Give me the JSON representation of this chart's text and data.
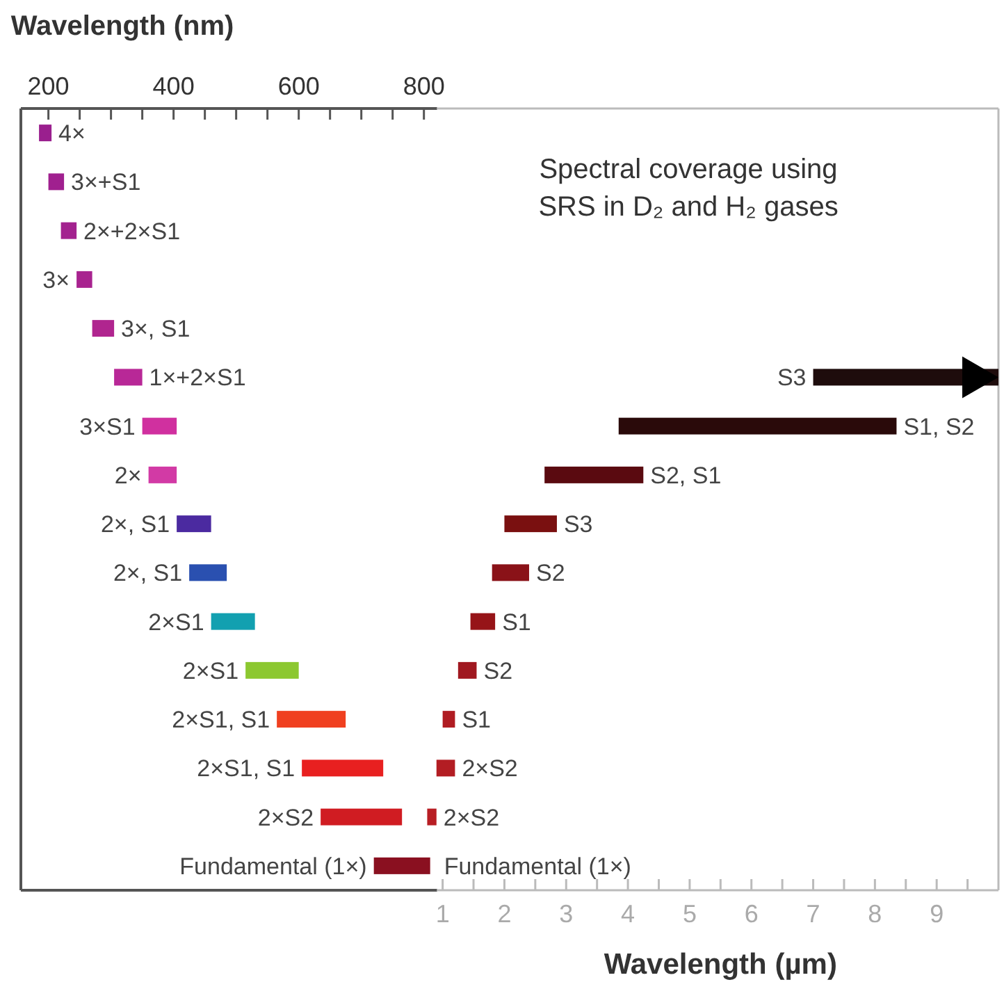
{
  "chart_data": {
    "type": "bar",
    "orientation": "horizontal",
    "grid": false,
    "categories": [
      null,
      null,
      null,
      null,
      null,
      null,
      null,
      null,
      null,
      null,
      null,
      null,
      null,
      null,
      null,
      null
    ],
    "series": [
      {
        "name": "4×",
        "axis": "x2",
        "color": "#9a1f8e",
        "base": [
          185,
          null,
          null,
          null,
          null,
          null,
          null,
          null,
          null,
          null,
          null,
          null,
          null,
          null,
          null,
          null
        ],
        "values": [
          20,
          null,
          null,
          null,
          null,
          null,
          null,
          null,
          null,
          null,
          null,
          null,
          null,
          null,
          null,
          null
        ]
      },
      {
        "name": "3×+S1",
        "axis": "x2",
        "color": "#a0208f",
        "base": [
          null,
          200,
          null,
          null,
          null,
          null,
          null,
          null,
          null,
          null,
          null,
          null,
          null,
          null,
          null,
          null
        ],
        "values": [
          null,
          25,
          null,
          null,
          null,
          null,
          null,
          null,
          null,
          null,
          null,
          null,
          null,
          null,
          null,
          null
        ]
      },
      {
        "name": "2×+2×S1",
        "axis": "x2",
        "color": "#a3228f",
        "base": [
          null,
          null,
          220,
          null,
          null,
          null,
          null,
          null,
          null,
          null,
          null,
          null,
          null,
          null,
          null,
          null
        ],
        "values": [
          null,
          null,
          25,
          null,
          null,
          null,
          null,
          null,
          null,
          null,
          null,
          null,
          null,
          null,
          null,
          null
        ]
      },
      {
        "name": "3×",
        "axis": "x2",
        "color": "#a8238f",
        "base": [
          null,
          null,
          null,
          245,
          null,
          null,
          null,
          null,
          null,
          null,
          null,
          null,
          null,
          null,
          null,
          null
        ],
        "values": [
          null,
          null,
          null,
          25,
          null,
          null,
          null,
          null,
          null,
          null,
          null,
          null,
          null,
          null,
          null,
          null
        ]
      },
      {
        "name": "3×, S1",
        "axis": "x2",
        "color": "#b0258f",
        "base": [
          null,
          null,
          null,
          null,
          270,
          null,
          null,
          null,
          null,
          null,
          null,
          null,
          null,
          null,
          null,
          null
        ],
        "values": [
          null,
          null,
          null,
          null,
          35,
          null,
          null,
          null,
          null,
          null,
          null,
          null,
          null,
          null,
          null,
          null
        ]
      },
      {
        "name": "1×+2×S1",
        "axis": "x2",
        "color": "#b82897",
        "base": [
          null,
          null,
          null,
          null,
          null,
          305,
          null,
          null,
          null,
          null,
          null,
          null,
          null,
          null,
          null,
          null
        ],
        "values": [
          null,
          null,
          null,
          null,
          null,
          45,
          null,
          null,
          null,
          null,
          null,
          null,
          null,
          null,
          null,
          null
        ]
      },
      {
        "name": "3×S1",
        "axis": "x2",
        "color": "#d0309f",
        "base": [
          null,
          null,
          null,
          null,
          null,
          null,
          350,
          null,
          null,
          null,
          null,
          null,
          null,
          null,
          null,
          null
        ],
        "values": [
          null,
          null,
          null,
          null,
          null,
          null,
          55,
          null,
          null,
          null,
          null,
          null,
          null,
          null,
          null,
          null
        ]
      },
      {
        "name": "2×",
        "axis": "x2",
        "color": "#d23aa5",
        "base": [
          null,
          null,
          null,
          null,
          null,
          null,
          null,
          360,
          null,
          null,
          null,
          null,
          null,
          null,
          null,
          null
        ],
        "values": [
          null,
          null,
          null,
          null,
          null,
          null,
          null,
          45,
          null,
          null,
          null,
          null,
          null,
          null,
          null,
          null
        ]
      },
      {
        "name": "2×, S1",
        "axis": "x2",
        "color": "#4b2aa0",
        "base": [
          null,
          null,
          null,
          null,
          null,
          null,
          null,
          null,
          405,
          null,
          null,
          null,
          null,
          null,
          null,
          null
        ],
        "values": [
          null,
          null,
          null,
          null,
          null,
          null,
          null,
          null,
          55,
          null,
          null,
          null,
          null,
          null,
          null,
          null
        ]
      },
      {
        "name": "2×, S1",
        "axis": "x2",
        "color": "#2a50b0",
        "base": [
          null,
          null,
          null,
          null,
          null,
          null,
          null,
          null,
          null,
          425,
          null,
          null,
          null,
          null,
          null,
          null
        ],
        "values": [
          null,
          null,
          null,
          null,
          null,
          null,
          null,
          null,
          null,
          60,
          null,
          null,
          null,
          null,
          null,
          null
        ]
      },
      {
        "name": "2×S1",
        "axis": "x2",
        "color": "#12a0b0",
        "base": [
          null,
          null,
          null,
          null,
          null,
          null,
          null,
          null,
          null,
          null,
          460,
          null,
          null,
          null,
          null,
          null
        ],
        "values": [
          null,
          null,
          null,
          null,
          null,
          null,
          null,
          null,
          null,
          null,
          70,
          null,
          null,
          null,
          null,
          null
        ]
      },
      {
        "name": "2×S1",
        "axis": "x2",
        "color": "#8cc830",
        "base": [
          null,
          null,
          null,
          null,
          null,
          null,
          null,
          null,
          null,
          null,
          null,
          515,
          null,
          null,
          null,
          null
        ],
        "values": [
          null,
          null,
          null,
          null,
          null,
          null,
          null,
          null,
          null,
          null,
          null,
          85,
          null,
          null,
          null,
          null
        ]
      },
      {
        "name": "2×S1, S1",
        "axis": "x2",
        "color": "#f04020",
        "base": [
          null,
          null,
          null,
          null,
          null,
          null,
          null,
          null,
          null,
          null,
          null,
          null,
          565,
          null,
          null,
          null
        ],
        "values": [
          null,
          null,
          null,
          null,
          null,
          null,
          null,
          null,
          null,
          null,
          null,
          null,
          110,
          null,
          null,
          null
        ]
      },
      {
        "name": "2×S1, S1",
        "axis": "x2",
        "color": "#e82020",
        "base": [
          null,
          null,
          null,
          null,
          null,
          null,
          null,
          null,
          null,
          null,
          null,
          null,
          null,
          605,
          null,
          null
        ],
        "values": [
          null,
          null,
          null,
          null,
          null,
          null,
          null,
          null,
          null,
          null,
          null,
          null,
          null,
          130,
          null,
          null
        ]
      },
      {
        "name": "2×S2",
        "axis": "x2",
        "color": "#d01c22",
        "base": [
          null,
          null,
          null,
          null,
          null,
          null,
          null,
          null,
          null,
          null,
          null,
          null,
          null,
          null,
          635,
          null
        ],
        "values": [
          null,
          null,
          null,
          null,
          null,
          null,
          null,
          null,
          null,
          null,
          null,
          null,
          null,
          null,
          130,
          null
        ]
      },
      {
        "name": "Fundamental (1×)",
        "axis": "x2",
        "color": "#8a1020",
        "base": [
          null,
          null,
          null,
          null,
          null,
          null,
          null,
          null,
          null,
          null,
          null,
          null,
          null,
          null,
          null,
          720
        ],
        "values": [
          null,
          null,
          null,
          null,
          null,
          null,
          null,
          null,
          null,
          null,
          null,
          null,
          null,
          null,
          null,
          90
        ]
      },
      {
        "name": "S3",
        "color": "#1e0c0c",
        "base": [
          null,
          null,
          null,
          null,
          null,
          7.0,
          null,
          null,
          null,
          null,
          null,
          null,
          null,
          null,
          null,
          null
        ],
        "values": [
          null,
          null,
          null,
          null,
          null,
          3.0,
          null,
          null,
          null,
          null,
          null,
          null,
          null,
          null,
          null,
          null
        ]
      },
      {
        "name": "S1, S2",
        "color": "#2a0a0a",
        "base": [
          null,
          null,
          null,
          null,
          null,
          null,
          3.85,
          null,
          null,
          null,
          null,
          null,
          null,
          null,
          null,
          null
        ],
        "values": [
          null,
          null,
          null,
          null,
          null,
          null,
          4.5,
          null,
          null,
          null,
          null,
          null,
          null,
          null,
          null,
          null
        ]
      },
      {
        "name": "S2, S1",
        "color": "#5a0a10",
        "base": [
          null,
          null,
          null,
          null,
          null,
          null,
          null,
          2.65,
          null,
          null,
          null,
          null,
          null,
          null,
          null,
          null
        ],
        "values": [
          null,
          null,
          null,
          null,
          null,
          null,
          null,
          1.6,
          null,
          null,
          null,
          null,
          null,
          null,
          null,
          null
        ]
      },
      {
        "name": "S3",
        "color": "#7a1010",
        "base": [
          null,
          null,
          null,
          null,
          null,
          null,
          null,
          null,
          2.0,
          null,
          null,
          null,
          null,
          null,
          null,
          null
        ],
        "values": [
          null,
          null,
          null,
          null,
          null,
          null,
          null,
          null,
          0.85,
          null,
          null,
          null,
          null,
          null,
          null,
          null
        ]
      },
      {
        "name": "S2",
        "color": "#8a1218",
        "base": [
          null,
          null,
          null,
          null,
          null,
          null,
          null,
          null,
          null,
          1.8,
          null,
          null,
          null,
          null,
          null,
          null
        ],
        "values": [
          null,
          null,
          null,
          null,
          null,
          null,
          null,
          null,
          null,
          0.6,
          null,
          null,
          null,
          null,
          null,
          null
        ]
      },
      {
        "name": "S1",
        "color": "#961418",
        "base": [
          null,
          null,
          null,
          null,
          null,
          null,
          null,
          null,
          null,
          null,
          1.45,
          null,
          null,
          null,
          null,
          null
        ],
        "values": [
          null,
          null,
          null,
          null,
          null,
          null,
          null,
          null,
          null,
          null,
          0.4,
          null,
          null,
          null,
          null,
          null
        ]
      },
      {
        "name": "S2",
        "color": "#a01820",
        "base": [
          null,
          null,
          null,
          null,
          null,
          null,
          null,
          null,
          null,
          null,
          null,
          1.25,
          null,
          null,
          null,
          null
        ],
        "values": [
          null,
          null,
          null,
          null,
          null,
          null,
          null,
          null,
          null,
          null,
          null,
          0.3,
          null,
          null,
          null,
          null
        ]
      },
      {
        "name": "S1",
        "color": "#b01c22",
        "base": [
          null,
          null,
          null,
          null,
          null,
          null,
          null,
          null,
          null,
          null,
          null,
          null,
          1.0,
          null,
          null,
          null
        ],
        "values": [
          null,
          null,
          null,
          null,
          null,
          null,
          null,
          null,
          null,
          null,
          null,
          null,
          0.2,
          null,
          null,
          null
        ]
      },
      {
        "name": "2×S2",
        "color": "#b31d23",
        "base": [
          null,
          null,
          null,
          null,
          null,
          null,
          null,
          null,
          null,
          null,
          null,
          null,
          null,
          0.9,
          null,
          null
        ],
        "values": [
          null,
          null,
          null,
          null,
          null,
          null,
          null,
          null,
          null,
          null,
          null,
          null,
          null,
          0.3,
          null,
          null
        ]
      },
      {
        "name": "2×S2",
        "color": "#b81e24",
        "base": [
          null,
          null,
          null,
          null,
          null,
          null,
          null,
          null,
          null,
          null,
          null,
          null,
          null,
          null,
          0.75,
          null
        ],
        "values": [
          null,
          null,
          null,
          null,
          null,
          null,
          null,
          null,
          null,
          null,
          null,
          null,
          null,
          null,
          0.15,
          null
        ]
      }
    ],
    "x2label": "Wavelength (nm)",
    "x2lim": [
      156,
      1718
    ],
    "x2ticks": [
      200,
      {
        "value": 250,
        "label": null
      },
      {
        "value": 300,
        "label": null
      },
      {
        "value": 350,
        "label": null
      },
      400,
      {
        "value": 450,
        "label": null
      },
      {
        "value": 500,
        "label": null
      },
      {
        "value": 550,
        "label": null
      },
      600,
      {
        "value": 650,
        "label": null
      },
      {
        "value": 700,
        "label": null
      },
      {
        "value": 750,
        "label": null
      },
      800
    ],
    "xlabel": "Wavelength (µm)",
    "xlim": [
      -5.83,
      10
    ],
    "xticks": [
      1,
      {
        "value": 1.5,
        "label": null
      },
      2,
      {
        "value": 2.5,
        "label": null
      },
      3,
      {
        "value": 3.5,
        "label": null
      },
      4,
      {
        "value": 4.5,
        "label": null
      },
      5,
      {
        "value": 5.5,
        "label": null
      },
      6,
      {
        "value": 6.5,
        "label": null
      },
      7,
      {
        "value": 7.5,
        "label": null
      },
      8,
      {
        "value": 8.5,
        "label": null
      },
      9,
      {
        "value": 9.5,
        "label": null
      }
    ],
    "annotations": [
      "Spectral coverage using\nSRS in D₂ and H₂ gases",
      "Fundamental (1×)"
    ]
  }
}
